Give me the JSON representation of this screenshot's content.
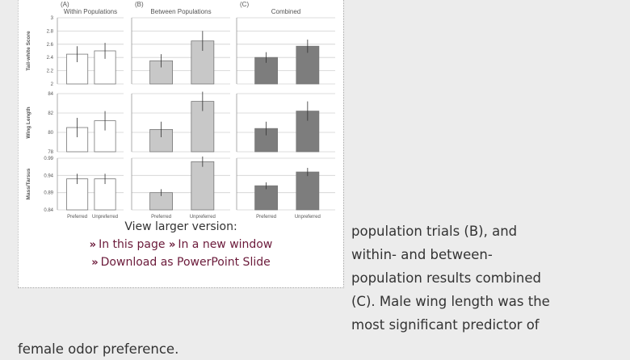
{
  "figure": {
    "columns": [
      {
        "letter": "(A)",
        "title": "Within Populations"
      },
      {
        "letter": "(B)",
        "title": "Between Populations"
      },
      {
        "letter": "(C)",
        "title": "Combined"
      }
    ],
    "categories": [
      "Preferred",
      "Unpreferred"
    ],
    "colors": [
      "#ffffff",
      "#c8c8c8",
      "#7d7d7d"
    ],
    "rows": [
      {
        "label": "Tail-white Score",
        "ylim": [
          2,
          3
        ],
        "yticks": [
          2,
          2.2,
          2.4,
          2.6,
          2.8,
          3
        ],
        "panels": [
          {
            "values": [
              2.45,
              2.5
            ],
            "errors": [
              0.12,
              0.12
            ]
          },
          {
            "values": [
              2.35,
              2.65
            ],
            "errors": [
              0.1,
              0.15
            ]
          },
          {
            "values": [
              2.4,
              2.57
            ],
            "errors": [
              0.08,
              0.1
            ]
          }
        ]
      },
      {
        "label": "Wing Length",
        "ylim": [
          78,
          84
        ],
        "yticks": [
          78,
          80,
          82,
          84
        ],
        "panels": [
          {
            "values": [
              80.5,
              81.2
            ],
            "errors": [
              1,
              1
            ]
          },
          {
            "values": [
              80.3,
              83.2
            ],
            "errors": [
              0.8,
              1
            ]
          },
          {
            "values": [
              80.4,
              82.2
            ],
            "errors": [
              0.7,
              1
            ]
          }
        ]
      },
      {
        "label": "Mass/Tarsus",
        "ylim": [
          0.84,
          0.99
        ],
        "yticks": [
          0.84,
          0.89,
          0.94,
          0.99
        ],
        "panels": [
          {
            "values": [
              0.93,
              0.93
            ],
            "errors": [
              0.015,
              0.015
            ]
          },
          {
            "values": [
              0.89,
              0.98
            ],
            "errors": [
              0.01,
              0.015
            ]
          },
          {
            "values": [
              0.91,
              0.95
            ],
            "errors": [
              0.01,
              0.012
            ]
          }
        ]
      }
    ]
  },
  "links": {
    "heading": "View larger version:",
    "in_page": "In this page",
    "new_window": "In a new window",
    "download": "Download as PowerPoint Slide"
  },
  "body": {
    "lines": [
      "population trials (B), and",
      "within- and between-",
      "population results combined",
      "(C). Male wing length was the",
      "most significant predictor of"
    ],
    "last_line": "female odor preference."
  }
}
